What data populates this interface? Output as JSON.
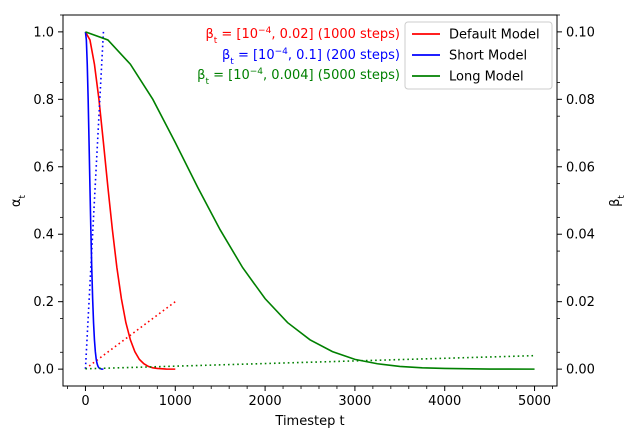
{
  "chart_data": {
    "type": "line",
    "xlabel": "Timestep t",
    "ylabel_left": "α_t",
    "ylabel_right": "β_t",
    "xlim": [
      -250,
      5250
    ],
    "ylim_left": [
      -0.05,
      1.05
    ],
    "ylim_right": [
      -0.005,
      0.105
    ],
    "x_ticks": [
      0,
      1000,
      2000,
      3000,
      4000,
      5000
    ],
    "y_ticks_left": [
      0.0,
      0.2,
      0.4,
      0.6,
      0.8,
      1.0
    ],
    "y_ticks_right": [
      0.0,
      0.02,
      0.04,
      0.06,
      0.08,
      0.1
    ],
    "grid": false,
    "legend_position": "top-right",
    "series": [
      {
        "name": "Default Model",
        "color": "#ff0000",
        "steps": 1000,
        "beta_range": [
          0.0001,
          0.02
        ],
        "alpha_curve": [
          [
            0,
            1.0
          ],
          [
            50,
            0.976
          ],
          [
            100,
            0.904
          ],
          [
            150,
            0.8
          ],
          [
            200,
            0.672
          ],
          [
            250,
            0.539
          ],
          [
            300,
            0.413
          ],
          [
            350,
            0.301
          ],
          [
            400,
            0.209
          ],
          [
            450,
            0.138
          ],
          [
            500,
            0.087
          ],
          [
            550,
            0.052
          ],
          [
            600,
            0.029
          ],
          [
            650,
            0.016
          ],
          [
            700,
            0.008
          ],
          [
            750,
            0.004
          ],
          [
            800,
            0.002
          ],
          [
            900,
            0.0003
          ],
          [
            1000,
            4e-05
          ]
        ],
        "beta_line": [
          [
            0,
            0.0001
          ],
          [
            1000,
            0.02
          ]
        ]
      },
      {
        "name": "Short Model",
        "color": "#0000ff",
        "steps": 200,
        "beta_range": [
          0.0001,
          0.1
        ],
        "alpha_curve": [
          [
            0,
            1.0
          ],
          [
            10,
            0.976
          ],
          [
            20,
            0.904
          ],
          [
            30,
            0.8
          ],
          [
            40,
            0.672
          ],
          [
            50,
            0.539
          ],
          [
            60,
            0.413
          ],
          [
            70,
            0.301
          ],
          [
            80,
            0.209
          ],
          [
            90,
            0.138
          ],
          [
            100,
            0.087
          ],
          [
            110,
            0.052
          ],
          [
            120,
            0.029
          ],
          [
            130,
            0.016
          ],
          [
            140,
            0.008
          ],
          [
            150,
            0.004
          ],
          [
            160,
            0.002
          ],
          [
            180,
            0.0003
          ],
          [
            200,
            4e-05
          ]
        ],
        "beta_line": [
          [
            0,
            0.0001
          ],
          [
            200,
            0.1
          ]
        ]
      },
      {
        "name": "Long Model",
        "color": "#008000",
        "steps": 5000,
        "beta_range": [
          0.0001,
          0.004
        ],
        "alpha_curve": [
          [
            0,
            1.0
          ],
          [
            250,
            0.976
          ],
          [
            500,
            0.904
          ],
          [
            750,
            0.8
          ],
          [
            1000,
            0.672
          ],
          [
            1250,
            0.539
          ],
          [
            1500,
            0.413
          ],
          [
            1750,
            0.301
          ],
          [
            2000,
            0.209
          ],
          [
            2250,
            0.138
          ],
          [
            2500,
            0.087
          ],
          [
            2750,
            0.052
          ],
          [
            3000,
            0.029
          ],
          [
            3250,
            0.016
          ],
          [
            3500,
            0.008
          ],
          [
            3750,
            0.004
          ],
          [
            4000,
            0.002
          ],
          [
            4500,
            0.0003
          ],
          [
            5000,
            4e-05
          ]
        ],
        "beta_line": [
          [
            0,
            0.0001
          ],
          [
            5000,
            0.004
          ]
        ]
      }
    ],
    "annotations": [
      {
        "text_prefix": "β",
        "text_sub": "t",
        "text_mid": " = [10",
        "text_sup": "−4",
        "text_suffix": ", 0.02] (1000 steps)",
        "color": "#ff0000"
      },
      {
        "text_prefix": "β",
        "text_sub": "t",
        "text_mid": " = [10",
        "text_sup": "−4",
        "text_suffix": ", 0.1] (200 steps)",
        "color": "#0000ff"
      },
      {
        "text_prefix": "β",
        "text_sub": "t",
        "text_mid": " = [10",
        "text_sup": "−4",
        "text_suffix": ", 0.004] (5000 steps)",
        "color": "#008000"
      }
    ]
  }
}
